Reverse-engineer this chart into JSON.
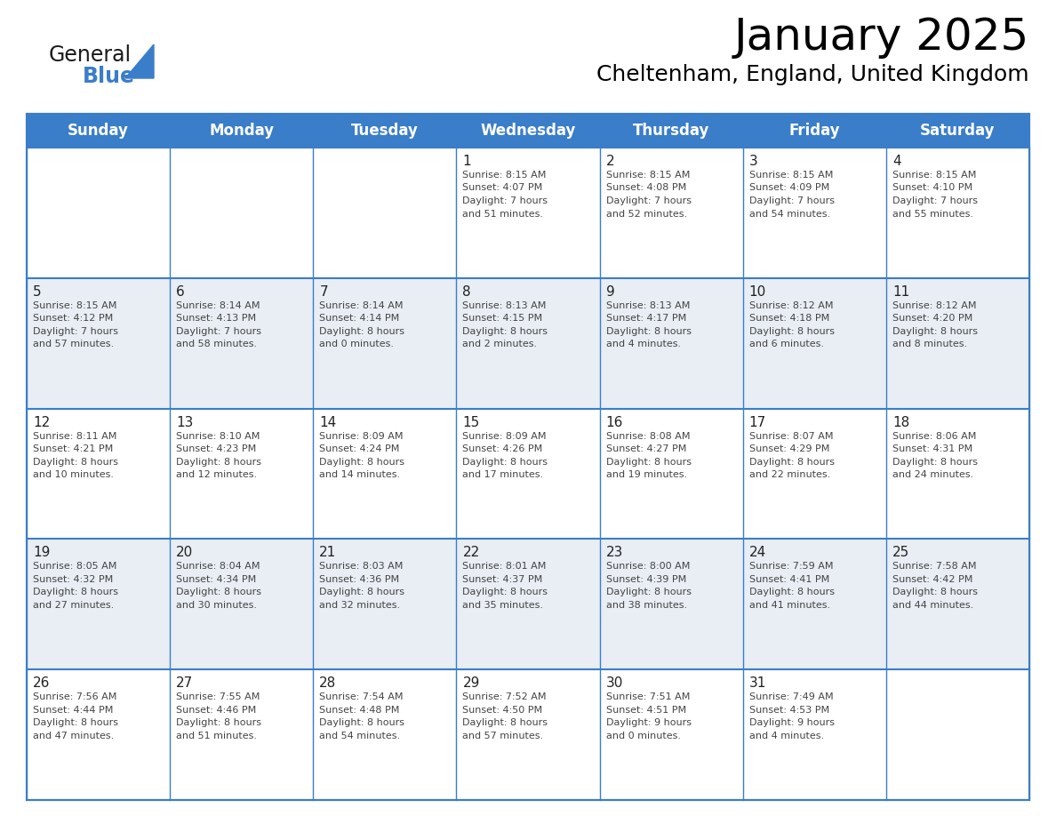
{
  "title": "January 2025",
  "subtitle": "Cheltenham, England, United Kingdom",
  "header_bg": "#3A7DC9",
  "header_text": "#FFFFFF",
  "row_bg_even": "#FFFFFF",
  "row_bg_odd": "#E8EEF4",
  "border_color": "#3A7DC9",
  "text_color": "#444444",
  "day_number_color": "#222222",
  "days_of_week": [
    "Sunday",
    "Monday",
    "Tuesday",
    "Wednesday",
    "Thursday",
    "Friday",
    "Saturday"
  ],
  "calendar_data": [
    [
      {
        "day": "",
        "sunrise": "",
        "sunset": "",
        "daylight": ""
      },
      {
        "day": "",
        "sunrise": "",
        "sunset": "",
        "daylight": ""
      },
      {
        "day": "",
        "sunrise": "",
        "sunset": "",
        "daylight": ""
      },
      {
        "day": "1",
        "sunrise": "8:15 AM",
        "sunset": "4:07 PM",
        "daylight": "7 hours and 51 minutes."
      },
      {
        "day": "2",
        "sunrise": "8:15 AM",
        "sunset": "4:08 PM",
        "daylight": "7 hours and 52 minutes."
      },
      {
        "day": "3",
        "sunrise": "8:15 AM",
        "sunset": "4:09 PM",
        "daylight": "7 hours and 54 minutes."
      },
      {
        "day": "4",
        "sunrise": "8:15 AM",
        "sunset": "4:10 PM",
        "daylight": "7 hours and 55 minutes."
      }
    ],
    [
      {
        "day": "5",
        "sunrise": "8:15 AM",
        "sunset": "4:12 PM",
        "daylight": "7 hours and 57 minutes."
      },
      {
        "day": "6",
        "sunrise": "8:14 AM",
        "sunset": "4:13 PM",
        "daylight": "7 hours and 58 minutes."
      },
      {
        "day": "7",
        "sunrise": "8:14 AM",
        "sunset": "4:14 PM",
        "daylight": "8 hours and 0 minutes."
      },
      {
        "day": "8",
        "sunrise": "8:13 AM",
        "sunset": "4:15 PM",
        "daylight": "8 hours and 2 minutes."
      },
      {
        "day": "9",
        "sunrise": "8:13 AM",
        "sunset": "4:17 PM",
        "daylight": "8 hours and 4 minutes."
      },
      {
        "day": "10",
        "sunrise": "8:12 AM",
        "sunset": "4:18 PM",
        "daylight": "8 hours and 6 minutes."
      },
      {
        "day": "11",
        "sunrise": "8:12 AM",
        "sunset": "4:20 PM",
        "daylight": "8 hours and 8 minutes."
      }
    ],
    [
      {
        "day": "12",
        "sunrise": "8:11 AM",
        "sunset": "4:21 PM",
        "daylight": "8 hours and 10 minutes."
      },
      {
        "day": "13",
        "sunrise": "8:10 AM",
        "sunset": "4:23 PM",
        "daylight": "8 hours and 12 minutes."
      },
      {
        "day": "14",
        "sunrise": "8:09 AM",
        "sunset": "4:24 PM",
        "daylight": "8 hours and 14 minutes."
      },
      {
        "day": "15",
        "sunrise": "8:09 AM",
        "sunset": "4:26 PM",
        "daylight": "8 hours and 17 minutes."
      },
      {
        "day": "16",
        "sunrise": "8:08 AM",
        "sunset": "4:27 PM",
        "daylight": "8 hours and 19 minutes."
      },
      {
        "day": "17",
        "sunrise": "8:07 AM",
        "sunset": "4:29 PM",
        "daylight": "8 hours and 22 minutes."
      },
      {
        "day": "18",
        "sunrise": "8:06 AM",
        "sunset": "4:31 PM",
        "daylight": "8 hours and 24 minutes."
      }
    ],
    [
      {
        "day": "19",
        "sunrise": "8:05 AM",
        "sunset": "4:32 PM",
        "daylight": "8 hours and 27 minutes."
      },
      {
        "day": "20",
        "sunrise": "8:04 AM",
        "sunset": "4:34 PM",
        "daylight": "8 hours and 30 minutes."
      },
      {
        "day": "21",
        "sunrise": "8:03 AM",
        "sunset": "4:36 PM",
        "daylight": "8 hours and 32 minutes."
      },
      {
        "day": "22",
        "sunrise": "8:01 AM",
        "sunset": "4:37 PM",
        "daylight": "8 hours and 35 minutes."
      },
      {
        "day": "23",
        "sunrise": "8:00 AM",
        "sunset": "4:39 PM",
        "daylight": "8 hours and 38 minutes."
      },
      {
        "day": "24",
        "sunrise": "7:59 AM",
        "sunset": "4:41 PM",
        "daylight": "8 hours and 41 minutes."
      },
      {
        "day": "25",
        "sunrise": "7:58 AM",
        "sunset": "4:42 PM",
        "daylight": "8 hours and 44 minutes."
      }
    ],
    [
      {
        "day": "26",
        "sunrise": "7:56 AM",
        "sunset": "4:44 PM",
        "daylight": "8 hours and 47 minutes."
      },
      {
        "day": "27",
        "sunrise": "7:55 AM",
        "sunset": "4:46 PM",
        "daylight": "8 hours and 51 minutes."
      },
      {
        "day": "28",
        "sunrise": "7:54 AM",
        "sunset": "4:48 PM",
        "daylight": "8 hours and 54 minutes."
      },
      {
        "day": "29",
        "sunrise": "7:52 AM",
        "sunset": "4:50 PM",
        "daylight": "8 hours and 57 minutes."
      },
      {
        "day": "30",
        "sunrise": "7:51 AM",
        "sunset": "4:51 PM",
        "daylight": "9 hours and 0 minutes."
      },
      {
        "day": "31",
        "sunrise": "7:49 AM",
        "sunset": "4:53 PM",
        "daylight": "9 hours and 4 minutes."
      },
      {
        "day": "",
        "sunrise": "",
        "sunset": "",
        "daylight": ""
      }
    ]
  ],
  "logo_text1": "General",
  "logo_text2": "Blue",
  "logo_color1": "#1a1a1a",
  "logo_color2": "#3A7DC9",
  "logo_triangle_color": "#3A7DC9",
  "title_fontsize": 36,
  "subtitle_fontsize": 18,
  "header_fontsize": 12,
  "day_num_fontsize": 11,
  "cell_text_fontsize": 8
}
